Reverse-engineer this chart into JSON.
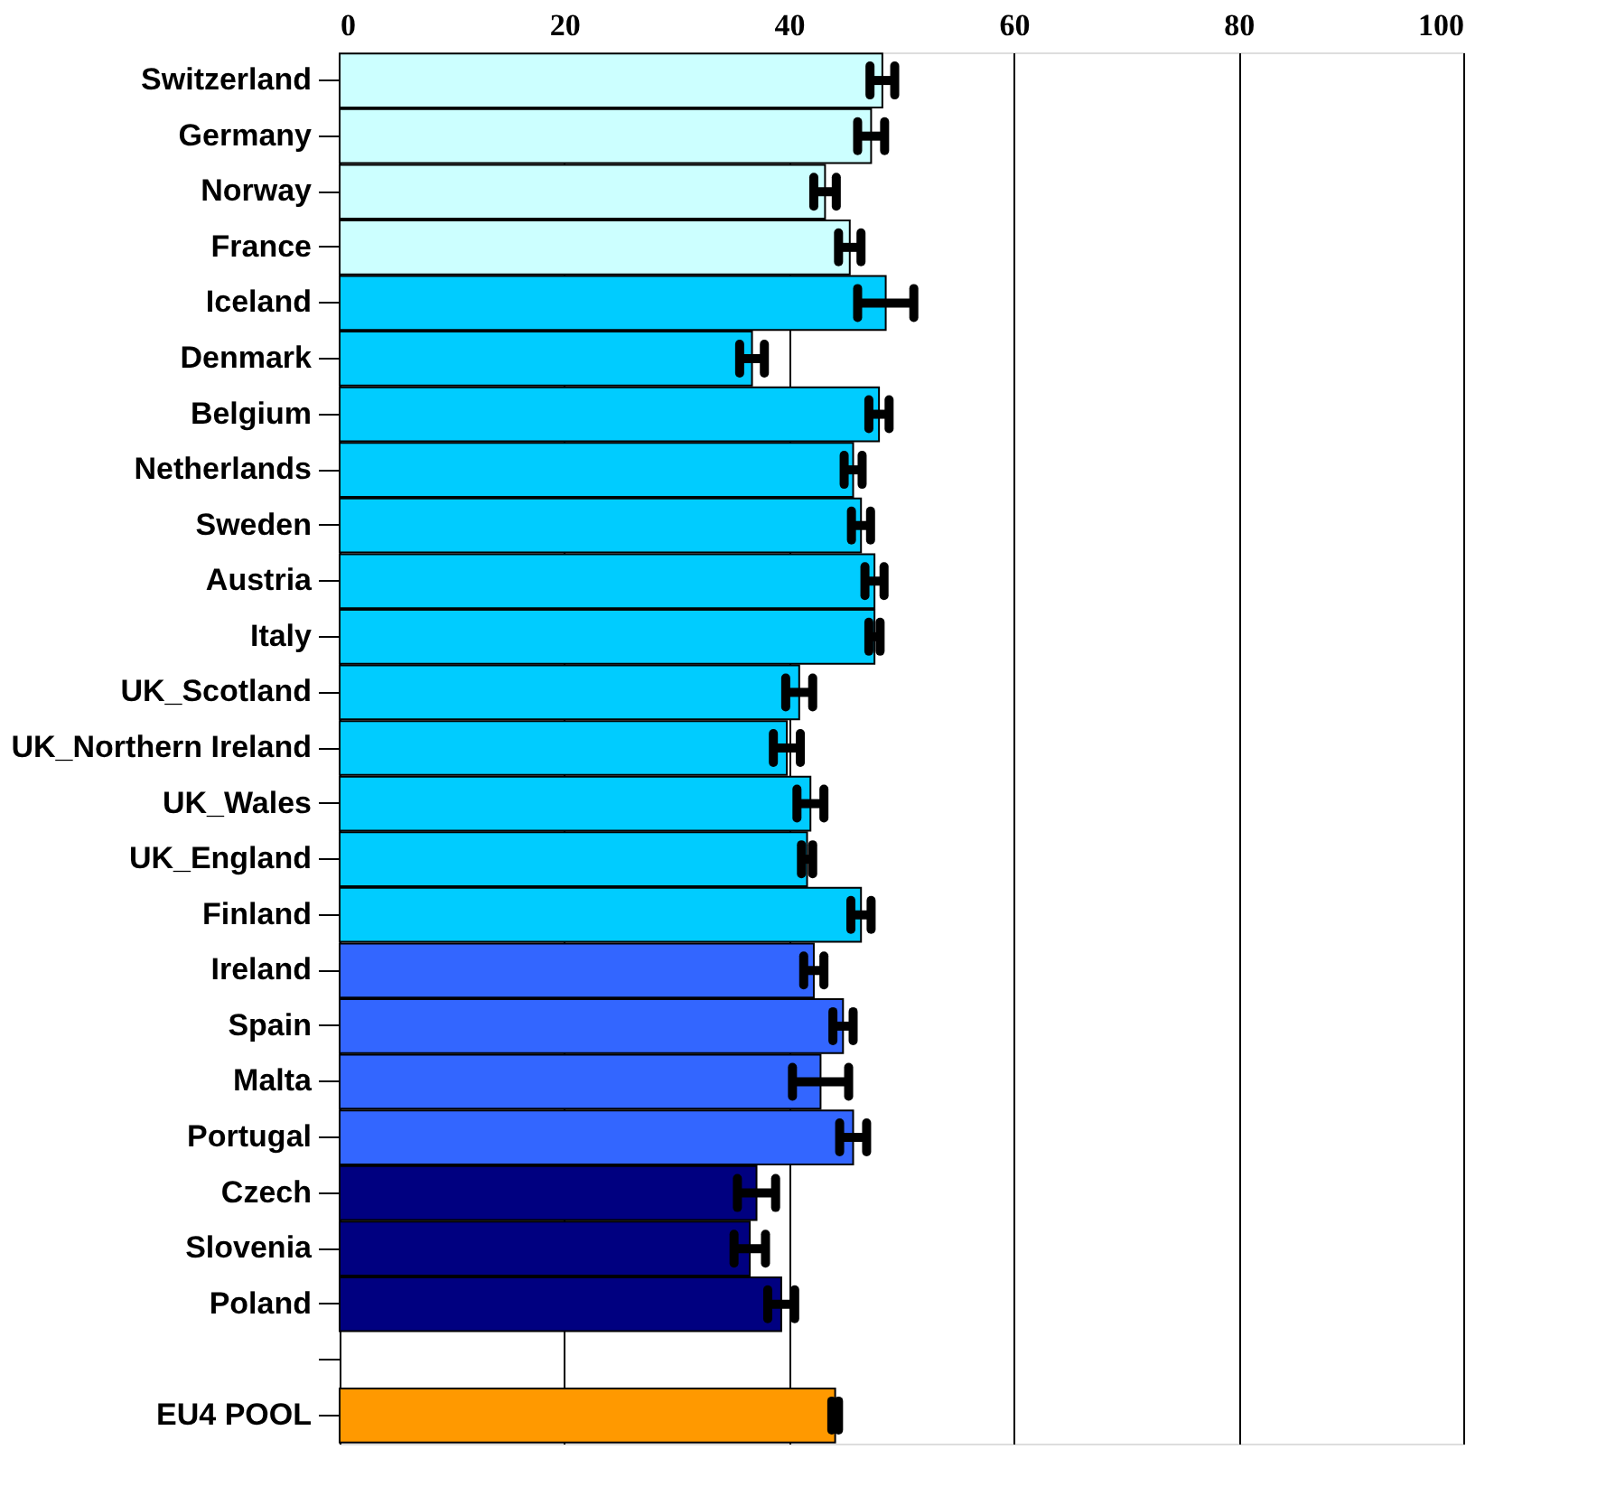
{
  "chart_data": {
    "type": "bar",
    "orientation": "horizontal",
    "categories": [
      "Switzerland",
      "Germany",
      "Norway",
      "France",
      "Iceland",
      "Denmark",
      "Belgium",
      "Netherlands",
      "Sweden",
      "Austria",
      "Italy",
      "UK_Scotland",
      "UK_Northern Ireland",
      "UK_Wales",
      "UK_England",
      "Finland",
      "Ireland",
      "Spain",
      "Malta",
      "Portugal",
      "Czech",
      "Slovenia",
      "Poland",
      null,
      "EU4 POOL"
    ],
    "values": [
      48.3,
      47.3,
      43.2,
      45.4,
      48.6,
      36.7,
      48.0,
      45.7,
      46.4,
      47.6,
      47.6,
      40.9,
      39.8,
      41.9,
      41.6,
      46.4,
      42.2,
      44.8,
      42.8,
      45.7,
      37.1,
      36.5,
      39.3,
      null,
      44.1
    ],
    "errors": [
      1.1,
      1.2,
      1.0,
      1.0,
      2.5,
      1.1,
      0.9,
      0.8,
      0.85,
      0.85,
      0.5,
      1.2,
      1.2,
      1.2,
      0.5,
      0.9,
      0.9,
      0.9,
      2.5,
      1.2,
      1.7,
      1.4,
      1.2,
      null,
      0.3
    ],
    "colors": [
      "#ccffff",
      "#ccffff",
      "#ccffff",
      "#ccffff",
      "#00ccff",
      "#00ccff",
      "#00ccff",
      "#00ccff",
      "#00ccff",
      "#00ccff",
      "#00ccff",
      "#00ccff",
      "#00ccff",
      "#00ccff",
      "#00ccff",
      "#00ccff",
      "#3366ff",
      "#3366ff",
      "#3366ff",
      "#3366ff",
      "#000080",
      "#000080",
      "#000080",
      "#000080",
      "#ff9900"
    ],
    "xlim": [
      0,
      100
    ],
    "xticks": [
      0,
      20,
      40,
      60,
      80,
      100
    ],
    "grid": "x"
  }
}
